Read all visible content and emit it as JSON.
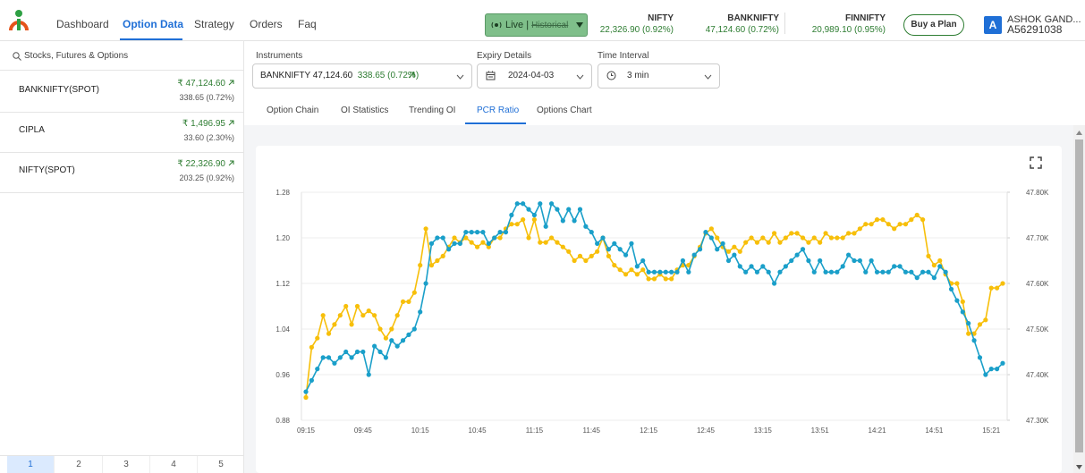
{
  "nav": {
    "items": [
      "Dashboard",
      "Option Data",
      "Strategy",
      "Orders",
      "Faq"
    ],
    "live": "Live",
    "historical": "Historical",
    "tickers": [
      {
        "name": "NIFTY",
        "value": "22,326.90 (0.92%)"
      },
      {
        "name": "BANKNIFTY",
        "value": "47,124.60 (0.72%)"
      },
      {
        "name": "FINNIFTY",
        "value": "20,989.10 (0.95%)"
      }
    ],
    "plan": "Buy a Plan",
    "avatar": "A",
    "user": "ASHOK GAND...",
    "user_id": "A56291038"
  },
  "sidebar": {
    "search": "Stocks, Futures & Options",
    "items": [
      {
        "name": "BANKNIFTY(SPOT)",
        "price": "₹ 47,124.60",
        "change": "338.65 (0.72%)"
      },
      {
        "name": "CIPLA",
        "price": "₹ 1,496.95",
        "change": "33.60 (2.30%)"
      },
      {
        "name": "NIFTY(SPOT)",
        "price": "₹ 22,326.90",
        "change": "203.25 (0.92%)"
      }
    ],
    "pages": [
      "1",
      "2",
      "3",
      "4",
      "5"
    ]
  },
  "controls": {
    "instruments_label": "Instruments",
    "instrument": "BANKNIFTY 47,124.60",
    "instrument_change": "338.65 (0.72%)",
    "expiry_label": "Expiry Details",
    "expiry": "2024-04-03",
    "interval_label": "Time Interval",
    "interval": "3 min"
  },
  "tabs": [
    "Option Chain",
    "OI Statistics",
    "Trending OI",
    "PCR Ratio",
    "Options Chart"
  ],
  "chart_data": {
    "type": "line",
    "categories": [
      "09:15",
      null,
      null,
      null,
      null,
      null,
      null,
      null,
      null,
      null,
      "09:45",
      null,
      null,
      null,
      null,
      null,
      null,
      null,
      null,
      null,
      "10:15",
      null,
      null,
      null,
      null,
      null,
      null,
      null,
      null,
      null,
      "10:45",
      null,
      null,
      null,
      null,
      null,
      null,
      null,
      null,
      null,
      "11:15",
      null,
      null,
      null,
      null,
      null,
      null,
      null,
      null,
      null,
      "11:45",
      null,
      null,
      null,
      null,
      null,
      null,
      null,
      null,
      null,
      "12:15",
      null,
      null,
      null,
      null,
      null,
      null,
      null,
      null,
      null,
      "12:45",
      null,
      null,
      null,
      null,
      null,
      null,
      null,
      null,
      null,
      "13:15",
      null,
      null,
      null,
      null,
      null,
      null,
      null,
      null,
      null,
      "13:51",
      null,
      null,
      null,
      null,
      null,
      null,
      null,
      null,
      null,
      "14:21",
      null,
      null,
      null,
      null,
      null,
      null,
      null,
      null,
      null,
      "14:51",
      null,
      null,
      null,
      null,
      null,
      null,
      null,
      null,
      null,
      "15:21",
      null,
      null
    ],
    "series": [
      {
        "color": "#1a9fc9",
        "values": [
          0.93,
          0.95,
          0.97,
          0.99,
          0.99,
          0.98,
          0.99,
          1.0,
          0.99,
          1.0,
          1.0,
          0.96,
          1.01,
          1.0,
          0.99,
          1.02,
          1.01,
          1.02,
          1.03,
          1.04,
          1.07,
          1.12,
          1.19,
          1.2,
          1.2,
          1.18,
          1.19,
          1.19,
          1.21,
          1.21,
          1.21,
          1.21,
          1.19,
          1.2,
          1.21,
          1.21,
          1.24,
          1.26,
          1.26,
          1.25,
          1.24,
          1.26,
          1.22,
          1.26,
          1.25,
          1.23,
          1.25,
          1.23,
          1.25,
          1.22,
          1.21,
          1.19,
          1.2,
          1.18,
          1.19,
          1.18,
          1.17,
          1.19,
          1.15,
          1.16,
          1.14,
          1.14,
          1.14,
          1.14,
          1.14,
          1.14,
          1.16,
          1.14,
          1.17,
          1.18,
          1.21,
          1.2,
          1.18,
          1.19,
          1.16,
          1.17,
          1.15,
          1.14,
          1.15,
          1.14,
          1.15,
          1.14,
          1.12,
          1.14,
          1.15,
          1.16,
          1.17,
          1.18,
          1.16,
          1.14,
          1.16,
          1.14,
          1.14,
          1.14,
          1.15,
          1.17,
          1.16,
          1.16,
          1.14,
          1.16,
          1.14,
          1.14,
          1.14,
          1.15,
          1.15,
          1.14,
          1.14,
          1.13,
          1.14,
          1.14,
          1.13,
          1.15,
          1.14,
          1.11,
          1.09,
          1.07,
          1.05,
          1.02,
          0.99,
          0.96,
          0.97,
          0.97,
          0.98
        ]
      },
      {
        "color": "#f7bf0a",
        "axis": "y2",
        "values": [
          47350,
          47460,
          47480,
          47530,
          47490,
          47510,
          47530,
          47550,
          47510,
          47550,
          47530,
          47540,
          47530,
          47500,
          47480,
          47500,
          47530,
          47560,
          47560,
          47580,
          47640,
          47720,
          47640,
          47650,
          47660,
          47680,
          47700,
          47690,
          47700,
          47690,
          47680,
          47690,
          47680,
          47700,
          47700,
          47720,
          47730,
          47730,
          47740,
          47700,
          47740,
          47690,
          47690,
          47700,
          47690,
          47680,
          47670,
          47650,
          47660,
          47650,
          47660,
          47670,
          47700,
          47660,
          47640,
          47630,
          47620,
          47630,
          47620,
          47630,
          47610,
          47610,
          47620,
          47610,
          47610,
          47630,
          47640,
          47640,
          47660,
          47680,
          47710,
          47720,
          47700,
          47680,
          47670,
          47680,
          47670,
          47690,
          47700,
          47690,
          47700,
          47690,
          47710,
          47690,
          47700,
          47710,
          47710,
          47700,
          47690,
          47700,
          47690,
          47710,
          47700,
          47700,
          47700,
          47710,
          47710,
          47720,
          47730,
          47730,
          47740,
          47740,
          47730,
          47720,
          47730,
          47730,
          47740,
          47750,
          47740,
          47660,
          47640,
          47650,
          47620,
          47600,
          47600,
          47560,
          47490,
          47490,
          47510,
          47520,
          47590,
          47590,
          47600
        ]
      }
    ],
    "ylim": [
      0.88,
      1.28
    ],
    "yticks": [
      1.28,
      {
        "value": 1.2,
        "label": "1.20"
      },
      1.12,
      1.04,
      0.96,
      0.88
    ],
    "y2lim": [
      47300,
      47800
    ],
    "y2ticks": [
      {
        "value": 47800,
        "label": "47.80K"
      },
      {
        "value": 47700,
        "label": "47.70K"
      },
      {
        "value": 47600,
        "label": "47.60K"
      },
      {
        "value": 47500,
        "label": "47.50K"
      },
      {
        "value": 47400,
        "label": "47.40K"
      },
      {
        "value": 47300,
        "label": "47.30K"
      }
    ],
    "grid": true
  }
}
